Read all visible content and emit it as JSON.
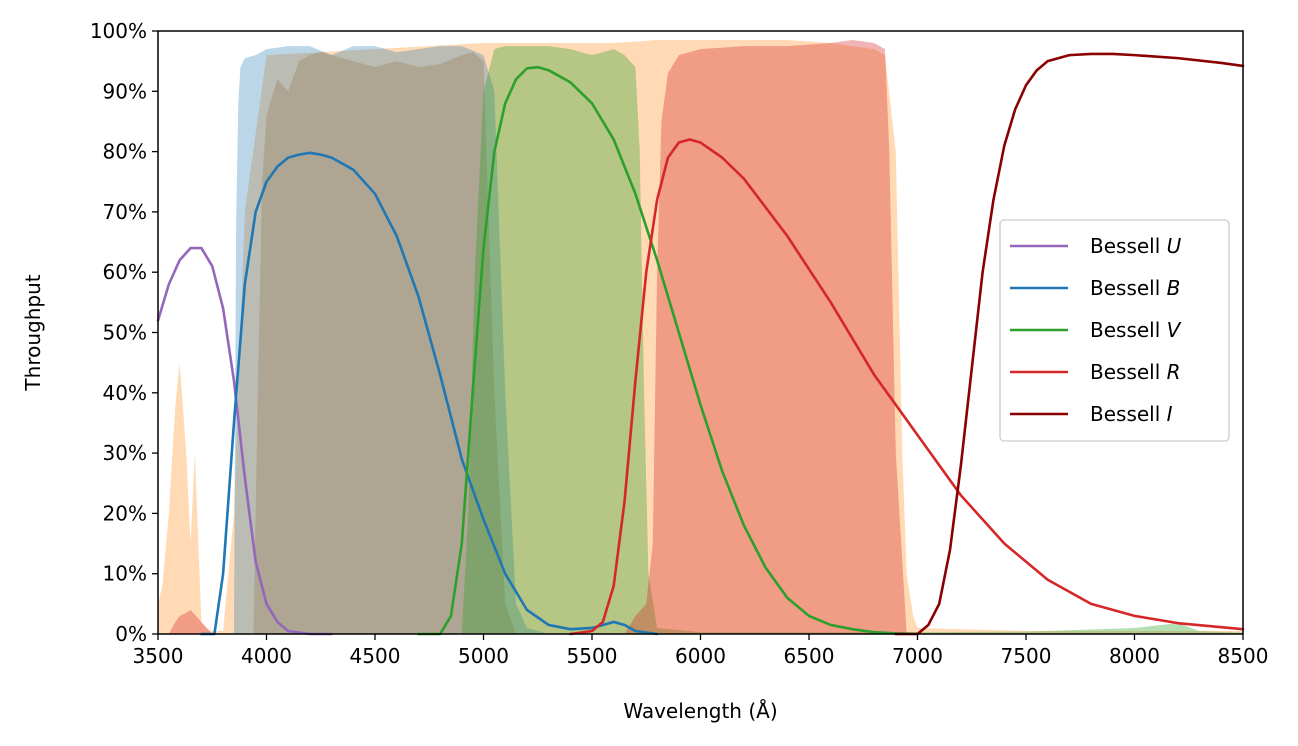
{
  "chart_data": {
    "type": "line",
    "xlabel": "Wavelength (Å)",
    "ylabel": "Throughput",
    "xlim": [
      3500,
      8500
    ],
    "ylim": [
      0,
      100
    ],
    "xticks": [
      3500,
      4000,
      4500,
      5000,
      5500,
      6000,
      6500,
      7000,
      7500,
      8000,
      8500
    ],
    "yticks": [
      0,
      10,
      20,
      30,
      40,
      50,
      60,
      70,
      80,
      90,
      100
    ],
    "ytick_suffix": "%",
    "legend_position": "center-right",
    "series": [
      {
        "name": "Bessell U",
        "prefix": "Bessell ",
        "letter": "U",
        "color": "#9467bd",
        "x": [
          3500,
          3550,
          3600,
          3650,
          3700,
          3750,
          3800,
          3850,
          3900,
          3950,
          4000,
          4050,
          4100,
          4200,
          4300
        ],
        "y": [
          52,
          58,
          62,
          64,
          64,
          61,
          54,
          42,
          26,
          12,
          5,
          2,
          0.5,
          0,
          0
        ]
      },
      {
        "name": "Bessell B",
        "prefix": "Bessell ",
        "letter": "B",
        "color": "#1f77b4",
        "x": [
          3700,
          3760,
          3800,
          3850,
          3900,
          3950,
          4000,
          4050,
          4100,
          4150,
          4200,
          4250,
          4300,
          4400,
          4500,
          4600,
          4700,
          4800,
          4900,
          5000,
          5100,
          5200,
          5300,
          5400,
          5500,
          5550,
          5600,
          5650,
          5700,
          5800
        ],
        "y": [
          0,
          0,
          10,
          35,
          58,
          70,
          75,
          77.5,
          79,
          79.5,
          79.8,
          79.5,
          79,
          77,
          73,
          66,
          56,
          43,
          29,
          19,
          10,
          4,
          1.5,
          0.8,
          1,
          1.5,
          2,
          1.5,
          0.5,
          0
        ]
      },
      {
        "name": "Bessell V",
        "prefix": "Bessell ",
        "letter": "V",
        "color": "#2ca02c",
        "x": [
          4700,
          4800,
          4850,
          4900,
          4950,
          5000,
          5050,
          5100,
          5150,
          5200,
          5250,
          5300,
          5400,
          5500,
          5600,
          5700,
          5800,
          5900,
          6000,
          6100,
          6200,
          6300,
          6400,
          6500,
          6600,
          6700,
          6800,
          6900,
          7000
        ],
        "y": [
          0,
          0,
          3,
          15,
          40,
          64,
          80,
          88,
          92,
          93.8,
          94,
          93.5,
          91.5,
          88,
          82,
          73,
          62,
          50,
          38,
          27,
          18,
          11,
          6,
          3,
          1.5,
          0.8,
          0.3,
          0.1,
          0
        ]
      },
      {
        "name": "Bessell R",
        "prefix": "Bessell ",
        "letter": "R",
        "color": "#d62728",
        "x": [
          5400,
          5500,
          5550,
          5600,
          5650,
          5700,
          5750,
          5800,
          5850,
          5900,
          5950,
          6000,
          6100,
          6200,
          6400,
          6600,
          6800,
          7000,
          7200,
          7400,
          7600,
          7800,
          8000,
          8200,
          8500
        ],
        "y": [
          0,
          0.5,
          2,
          8,
          22,
          42,
          60,
          72,
          79,
          81.5,
          82,
          81.5,
          79,
          75.5,
          66,
          55,
          43,
          33,
          23,
          15,
          9,
          5,
          3,
          1.8,
          0.8
        ]
      },
      {
        "name": "Bessell I",
        "prefix": "Bessell ",
        "letter": "I",
        "color": "#8b0000",
        "x": [
          6900,
          7000,
          7050,
          7100,
          7150,
          7200,
          7250,
          7300,
          7350,
          7400,
          7450,
          7500,
          7550,
          7600,
          7700,
          7800,
          7900,
          8000,
          8200,
          8400,
          8500
        ],
        "y": [
          0,
          0,
          1.5,
          5,
          14,
          28,
          44,
          60,
          72,
          81,
          87,
          91,
          93.5,
          95,
          96,
          96.2,
          96.2,
          96,
          95.5,
          94.7,
          94.2
        ]
      }
    ],
    "filled_regions": [
      {
        "color": "#ffbb78",
        "opacity": 0.55,
        "x": [
          3500,
          3520,
          3550,
          3580,
          3600,
          3630,
          3650,
          3670,
          3700,
          3720,
          3750,
          3800,
          3850,
          3900,
          4000,
          4500,
          5000,
          5200,
          5400,
          5600,
          5800,
          6000,
          6200,
          6400,
          6600,
          6700,
          6800,
          6850,
          6900,
          6930,
          6950,
          6980,
          7000,
          7500,
          8000,
          8500
        ],
        "y": [
          5,
          8,
          20,
          38,
          45,
          30,
          15,
          30,
          2,
          1,
          0.5,
          0.5,
          20,
          70,
          96,
          97,
          98,
          98,
          98,
          98,
          98.5,
          98.5,
          98.5,
          98.5,
          98,
          97.5,
          97,
          96,
          80,
          30,
          10,
          3,
          1,
          0.5,
          0.5,
          0.5
        ]
      },
      {
        "color": "#1f77b4",
        "opacity": 0.3,
        "x": [
          3850,
          3860,
          3870,
          3880,
          3900,
          3950,
          4000,
          4100,
          4200,
          4300,
          4400,
          4500,
          4600,
          4700,
          4800,
          4900,
          5000,
          5050,
          5100,
          5150,
          5200,
          5300
        ],
        "y": [
          0,
          68,
          88,
          94,
          95.5,
          96,
          97,
          97.5,
          97.5,
          96,
          97.5,
          97.5,
          96.5,
          97,
          97.5,
          97.5,
          96,
          90,
          40,
          5,
          1,
          0
        ]
      },
      {
        "color": "#a89880",
        "opacity": 0.65,
        "x": [
          3940,
          3960,
          3980,
          4000,
          4050,
          4100,
          4150,
          4200,
          4250,
          4300,
          4400,
          4500,
          4600,
          4700,
          4800,
          4900,
          4950,
          5000,
          5050,
          5100,
          5150
        ],
        "y": [
          0,
          40,
          75,
          86,
          92,
          90,
          95,
          96,
          96.5,
          96,
          95,
          94,
          95,
          94,
          94.5,
          96,
          96.5,
          95,
          40,
          5,
          0
        ]
      },
      {
        "color": "#2ca02c",
        "opacity": 0.35,
        "x": [
          4900,
          4930,
          4960,
          5000,
          5050,
          5100,
          5200,
          5300,
          5400,
          5500,
          5600,
          5650,
          5700,
          5720,
          5740,
          5760,
          5800,
          6000,
          6500,
          7000,
          7500,
          8000,
          8200,
          8300,
          8500
        ],
        "y": [
          0,
          20,
          60,
          90,
          97,
          97.5,
          97.5,
          97.5,
          97,
          96,
          97,
          96,
          94,
          80,
          40,
          10,
          1,
          0.3,
          0.3,
          0.3,
          0.4,
          1,
          1.8,
          0.5,
          0.2
        ]
      },
      {
        "color": "#d62728",
        "opacity": 0.35,
        "x": [
          3550,
          3580,
          3600,
          3630,
          3650,
          3700,
          3750,
          5650,
          5700,
          5750,
          5780,
          5800,
          5820,
          5850,
          5900,
          6000,
          6200,
          6400,
          6600,
          6700,
          6800,
          6850,
          6870,
          6900,
          6950
        ],
        "y": [
          0,
          2,
          3,
          3.5,
          4,
          2,
          0,
          0,
          3,
          5,
          15,
          60,
          85,
          93,
          96,
          97,
          97.5,
          97.5,
          98,
          98.5,
          98,
          97,
          80,
          30,
          0
        ]
      }
    ]
  }
}
